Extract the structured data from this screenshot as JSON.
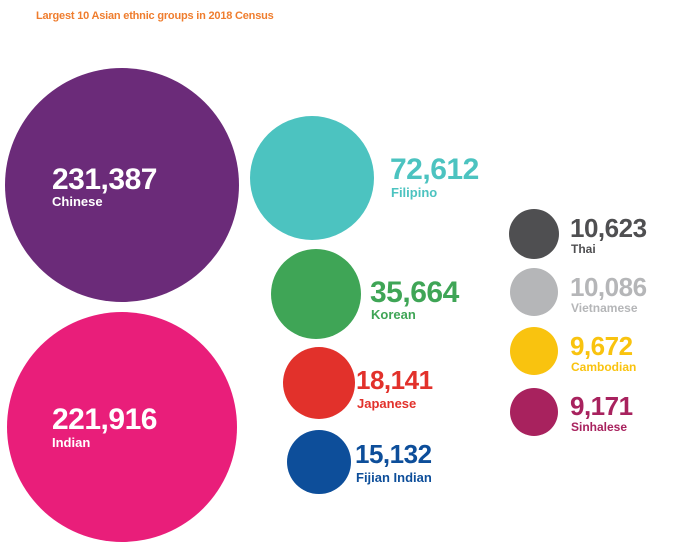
{
  "title": "Largest 10 Asian ethnic groups in 2018 Census",
  "chart_data": {
    "type": "bubble",
    "title": "Largest 10 Asian ethnic groups in 2018 Census",
    "series": [
      {
        "name": "Chinese",
        "value": 231387,
        "display": "231,387",
        "color": "#6b2b79"
      },
      {
        "name": "Indian",
        "value": 221916,
        "display": "221,916",
        "color": "#e91e7a"
      },
      {
        "name": "Filipino",
        "value": 72612,
        "display": "72,612",
        "color": "#4cc3c0"
      },
      {
        "name": "Korean",
        "value": 35664,
        "display": "35,664",
        "color": "#3fa556"
      },
      {
        "name": "Japanese",
        "value": 18141,
        "display": "18,141",
        "color": "#e2312b"
      },
      {
        "name": "Fijian Indian",
        "value": 15132,
        "display": "15,132",
        "color": "#0d4e9a"
      },
      {
        "name": "Thai",
        "value": 10623,
        "display": "10,623",
        "color": "#4f4f51"
      },
      {
        "name": "Vietnamese",
        "value": 10086,
        "display": "10,086",
        "color": "#b5b6b8"
      },
      {
        "name": "Cambodian",
        "value": 9672,
        "display": "9,672",
        "color": "#f9c30f"
      },
      {
        "name": "Sinhalese",
        "value": 9171,
        "display": "9,171",
        "color": "#a8225e"
      }
    ]
  }
}
